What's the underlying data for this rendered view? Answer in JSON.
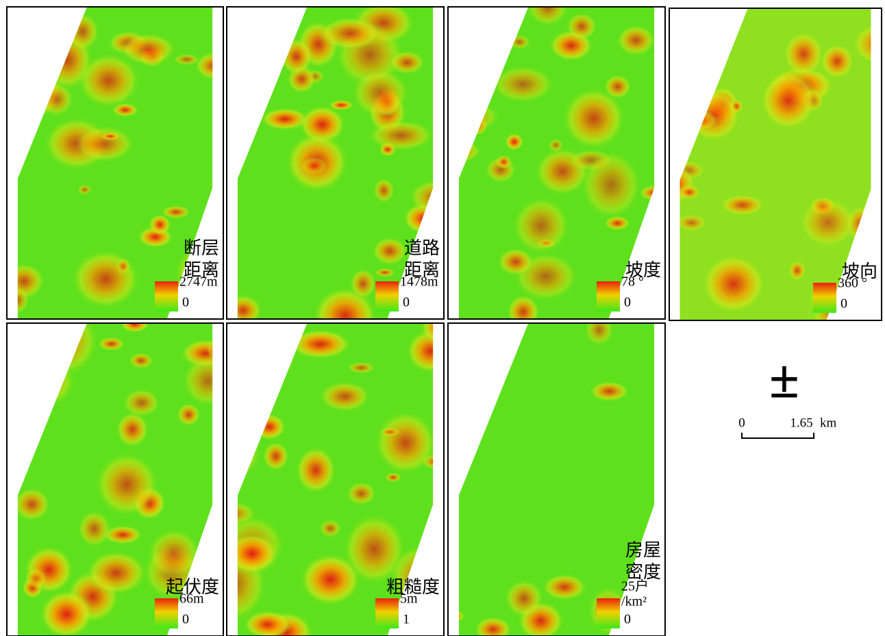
{
  "panels": [
    {
      "title_lines": [
        "断层",
        "距离"
      ],
      "max_lines": [
        "2747m"
      ],
      "min": "0"
    },
    {
      "title_lines": [
        "道路",
        "距离"
      ],
      "max_lines": [
        "1478m"
      ],
      "min": "0"
    },
    {
      "title_lines": [
        "坡度"
      ],
      "max_lines": [
        "78 °"
      ],
      "min": "0"
    },
    {
      "title_lines": [
        "坡向"
      ],
      "max_lines": [
        "360 °"
      ],
      "min": "0"
    },
    {
      "title_lines": [
        "起伏度"
      ],
      "max_lines": [
        "66m"
      ],
      "min": "0"
    },
    {
      "title_lines": [
        "粗糙度"
      ],
      "max_lines": [
        "5m"
      ],
      "min": "1"
    },
    {
      "title_lines": [
        "房屋",
        "密度"
      ],
      "max_lines": [
        "25户",
        "/km²"
      ],
      "min": "0"
    }
  ],
  "north_arrow": "±",
  "scale_bar": {
    "start": "0",
    "end": "1.65",
    "unit": "km"
  }
}
